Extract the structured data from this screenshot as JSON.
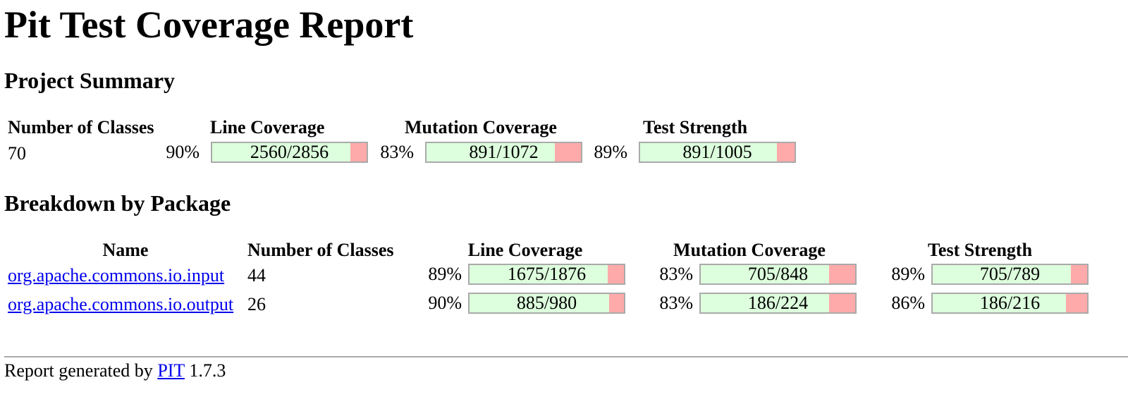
{
  "title": "Pit Test Coverage Report",
  "summary": {
    "heading": "Project Summary",
    "headers": {
      "classes": "Number of Classes",
      "line": "Line Coverage",
      "mutation": "Mutation Coverage",
      "strength": "Test Strength"
    },
    "classes": "70",
    "line": {
      "pct": "90%",
      "text": "2560/2856",
      "fraction": 0.896
    },
    "mutation": {
      "pct": "83%",
      "text": "891/1072",
      "fraction": 0.831
    },
    "strength": {
      "pct": "89%",
      "text": "891/1005",
      "fraction": 0.887
    }
  },
  "breakdown": {
    "heading": "Breakdown by Package",
    "headers": {
      "name": "Name",
      "classes": "Number of Classes",
      "line": "Line Coverage",
      "mutation": "Mutation Coverage",
      "strength": "Test Strength"
    },
    "rows": [
      {
        "name": "org.apache.commons.io.input",
        "classes": "44",
        "line": {
          "pct": "89%",
          "text": "1675/1876",
          "fraction": 0.893
        },
        "mutation": {
          "pct": "83%",
          "text": "705/848",
          "fraction": 0.831
        },
        "strength": {
          "pct": "89%",
          "text": "705/789",
          "fraction": 0.894
        }
      },
      {
        "name": "org.apache.commons.io.output",
        "classes": "26",
        "line": {
          "pct": "90%",
          "text": "885/980",
          "fraction": 0.903
        },
        "mutation": {
          "pct": "83%",
          "text": "186/224",
          "fraction": 0.83
        },
        "strength": {
          "pct": "86%",
          "text": "186/216",
          "fraction": 0.861
        }
      }
    ]
  },
  "footer": {
    "prefix": "Report generated by",
    "link": "PIT",
    "version": "1.7.3"
  },
  "colors": {
    "covered": "#ddffdd",
    "uncovered": "#ffaaaa",
    "link": "#0000ee"
  }
}
